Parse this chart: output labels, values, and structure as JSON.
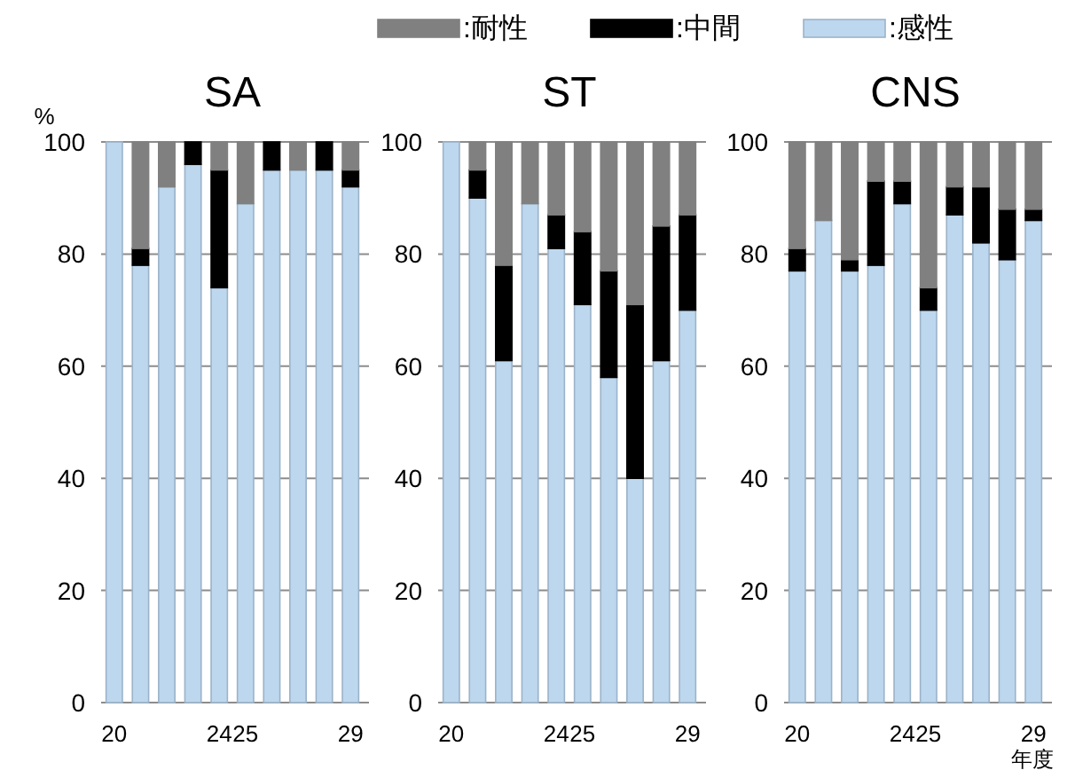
{
  "chart_data": [
    {
      "type": "bar",
      "title": "SA",
      "ylabel": "%",
      "stacked": true,
      "grid": "y",
      "legend": "top",
      "categories": [
        "20",
        null,
        null,
        null,
        "24",
        "25",
        null,
        null,
        null,
        "29"
      ],
      "ylim": [
        0,
        100
      ],
      "yticks": [
        0,
        20,
        40,
        60,
        80,
        100
      ],
      "series": [
        {
          "name": ":感性",
          "color": "#bdd7ee",
          "values": [
            100,
            78,
            92,
            96,
            74,
            89,
            95,
            95,
            95,
            92
          ]
        },
        {
          "name": ":中間",
          "color": "#000000",
          "values": [
            0,
            3,
            0,
            4,
            21,
            0,
            5,
            0,
            5,
            3
          ]
        },
        {
          "name": ":耐性",
          "color": "#808080",
          "values": [
            0,
            19,
            8,
            0,
            5,
            11,
            0,
            5,
            0,
            5
          ]
        }
      ]
    },
    {
      "type": "bar",
      "title": "ST",
      "stacked": true,
      "grid": "y",
      "categories": [
        "20",
        null,
        null,
        null,
        "24",
        "25",
        null,
        null,
        null,
        "29"
      ],
      "ylim": [
        0,
        100
      ],
      "yticks": [
        0,
        20,
        40,
        60,
        80,
        100
      ],
      "series": [
        {
          "color": "#bdd7ee",
          "values": [
            100,
            90,
            61,
            89,
            81,
            71,
            58,
            40,
            61,
            70
          ]
        },
        {
          "color": "#000000",
          "values": [
            0,
            5,
            17,
            0,
            6,
            13,
            19,
            31,
            24,
            17
          ]
        },
        {
          "color": "#808080",
          "values": [
            0,
            5,
            22,
            11,
            13,
            16,
            23,
            29,
            15,
            13
          ]
        }
      ]
    },
    {
      "type": "bar",
      "title": "CNS",
      "xlabel": "年度",
      "stacked": true,
      "grid": "y",
      "categories": [
        "20",
        null,
        null,
        null,
        "24",
        "25",
        null,
        null,
        null,
        "29"
      ],
      "ylim": [
        0,
        100
      ],
      "yticks": [
        0,
        20,
        40,
        60,
        80,
        100
      ],
      "series": [
        {
          "color": "#bdd7ee",
          "values": [
            77,
            86,
            77,
            78,
            89,
            70,
            87,
            82,
            79,
            86
          ]
        },
        {
          "color": "#000000",
          "values": [
            4,
            0,
            2,
            15,
            4,
            4,
            5,
            10,
            9,
            2
          ]
        },
        {
          "color": "#808080",
          "values": [
            19,
            14,
            21,
            7,
            7,
            26,
            8,
            8,
            12,
            12
          ]
        }
      ]
    }
  ]
}
